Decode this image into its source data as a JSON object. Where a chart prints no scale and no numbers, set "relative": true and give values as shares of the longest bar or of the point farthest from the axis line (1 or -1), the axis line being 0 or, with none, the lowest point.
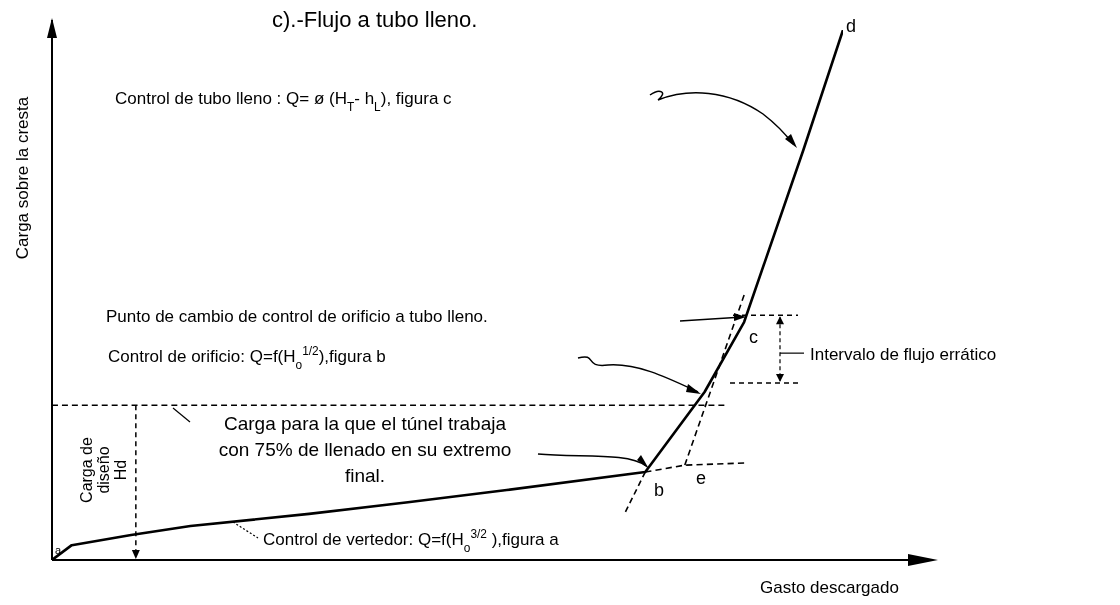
{
  "chart_data": {
    "type": "line",
    "relative": true,
    "title": "c).-Flujo a tubo lleno.",
    "xlabel": "Gasto descargado",
    "ylabel": "Carga sobre la cresta",
    "categories": [
      null,
      null,
      null,
      null,
      null,
      null,
      null,
      null,
      null,
      null,
      null,
      null,
      null,
      null,
      null,
      null,
      null,
      null,
      null,
      null,
      null,
      null,
      null,
      null,
      null,
      null,
      null,
      null,
      null,
      null,
      null,
      null,
      null,
      null,
      null,
      null,
      null,
      null,
      null,
      null,
      null
    ],
    "series": [
      {
        "color": "#000000",
        "line_style": "solid",
        "values": [
          0,
          0.028,
          null,
          null,
          0.047,
          null,
          null,
          0.064,
          null,
          null,
          null,
          null,
          null,
          0.087,
          null,
          null,
          null,
          null,
          0.109,
          null,
          null,
          null,
          null,
          0.132,
          null,
          null,
          null,
          null,
          null,
          null,
          0.166,
          null,
          null,
          0.317,
          null,
          0.449,
          null,
          null,
          0.774,
          null,
          1
        ]
      },
      {
        "color": "#000000",
        "line_style": "dashed",
        "values": [
          null,
          null,
          null,
          null,
          null,
          null,
          null,
          null,
          null,
          null,
          null,
          null,
          null,
          null,
          null,
          null,
          null,
          null,
          null,
          null,
          null,
          null,
          null,
          null,
          null,
          null,
          null,
          null,
          null,
          null,
          0.166,
          null,
          0.179,
          null,
          null,
          0.183,
          null,
          null,
          null,
          null,
          null
        ]
      },
      {
        "color": "#000000",
        "line_style": "dashed",
        "values": [
          null,
          null,
          null,
          null,
          null,
          null,
          null,
          null,
          null,
          null,
          null,
          null,
          null,
          null,
          null,
          null,
          null,
          null,
          null,
          null,
          null,
          null,
          null,
          null,
          null,
          null,
          null,
          null,
          null,
          0.091,
          0.166,
          null,
          null,
          null,
          null,
          null,
          null,
          null,
          null,
          null,
          null
        ]
      },
      {
        "color": "#000000",
        "line_style": "dashed",
        "values": [
          null,
          null,
          null,
          null,
          null,
          null,
          null,
          null,
          null,
          null,
          null,
          null,
          null,
          null,
          null,
          null,
          null,
          null,
          null,
          null,
          null,
          null,
          null,
          null,
          null,
          null,
          null,
          null,
          null,
          null,
          null,
          null,
          0.179,
          null,
          null,
          0.5,
          null,
          null,
          null,
          null,
          null
        ]
      },
      {
        "color": "#000000",
        "line_style": "dashed",
        "values": [
          0.292,
          null,
          null,
          null,
          null,
          null,
          null,
          null,
          null,
          null,
          null,
          null,
          null,
          null,
          null,
          null,
          null,
          null,
          null,
          null,
          null,
          null,
          null,
          null,
          null,
          null,
          null,
          null,
          null,
          null,
          null,
          null,
          null,
          null,
          0.292,
          null,
          null,
          null,
          null,
          null,
          null
        ]
      }
    ],
    "annotations": [
      "Control de tubo lleno : Q= ø (H$_{T}$- h$_{L}$), figura c",
      "Punto de cambio de control de orificio a tubo lleno.",
      "Control de orificio: Q=f(H$_{o}$$^{1/2}$),figura b",
      "Carga para la que el túnel trabaja con 75% de llenado en su extremo final.",
      "Control de vertedor: Q=f(H$_{o}$$^{3/2}$ ),figura a",
      "Carga de diseño Hd",
      "Intervalo de flujo errático",
      "a",
      "b",
      "c",
      "d",
      "e"
    ],
    "grid": false
  }
}
